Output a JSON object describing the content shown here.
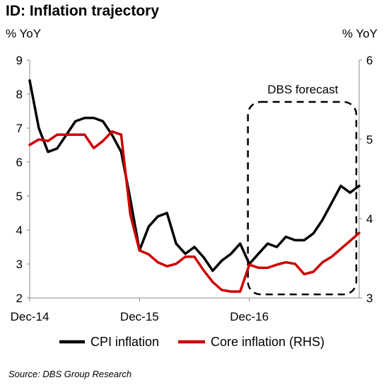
{
  "title": "ID: Inflation trajectory",
  "source": "Source: DBS Group Research",
  "chart_data": {
    "type": "line",
    "title": "ID: Inflation trajectory",
    "ylabel_left": "% YoY",
    "ylabel_right": "% YoY",
    "x_ticks": [
      "Dec-14",
      "Dec-15",
      "Dec-16"
    ],
    "x_start": "2014-12",
    "x_end": "2017-12",
    "ylim_left": [
      2,
      9
    ],
    "ylim_right": [
      3,
      6
    ],
    "y_ticks_left": [
      2,
      3,
      4,
      5,
      6,
      7,
      8,
      9
    ],
    "y_ticks_right": [
      3,
      4,
      5,
      6
    ],
    "grid": false,
    "legend_position": "bottom",
    "annotation": "DBS forecast",
    "forecast_range": [
      "2016-12",
      "2017-12"
    ],
    "series": [
      {
        "name": "CPI inflation",
        "axis": "left",
        "color": "#000000",
        "x": [
          "2014-12",
          "2015-01",
          "2015-02",
          "2015-03",
          "2015-04",
          "2015-05",
          "2015-06",
          "2015-07",
          "2015-08",
          "2015-09",
          "2015-10",
          "2015-11",
          "2015-12",
          "2016-01",
          "2016-02",
          "2016-03",
          "2016-04",
          "2016-05",
          "2016-06",
          "2016-07",
          "2016-08",
          "2016-09",
          "2016-10",
          "2016-11",
          "2016-12",
          "2017-01",
          "2017-02",
          "2017-03",
          "2017-04",
          "2017-05",
          "2017-06",
          "2017-07",
          "2017-08",
          "2017-09",
          "2017-10",
          "2017-11",
          "2017-12"
        ],
        "values": [
          8.4,
          7.0,
          6.3,
          6.4,
          6.8,
          7.2,
          7.3,
          7.3,
          7.2,
          6.8,
          6.3,
          4.9,
          3.4,
          4.1,
          4.4,
          4.5,
          3.6,
          3.3,
          3.5,
          3.2,
          2.8,
          3.1,
          3.3,
          3.6,
          3.0,
          3.3,
          3.6,
          3.5,
          3.8,
          3.7,
          3.7,
          3.9,
          4.3,
          4.8,
          5.3,
          5.1,
          5.3
        ]
      },
      {
        "name": "Core inflation (RHS)",
        "axis": "right",
        "color": "#cc0000",
        "x": [
          "2014-12",
          "2015-01",
          "2015-02",
          "2015-03",
          "2015-04",
          "2015-05",
          "2015-06",
          "2015-07",
          "2015-08",
          "2015-09",
          "2015-10",
          "2015-11",
          "2015-12",
          "2016-01",
          "2016-02",
          "2016-03",
          "2016-04",
          "2016-05",
          "2016-06",
          "2016-07",
          "2016-08",
          "2016-09",
          "2016-10",
          "2016-11",
          "2016-12",
          "2017-01",
          "2017-02",
          "2017-03",
          "2017-04",
          "2017-05",
          "2017-06",
          "2017-07",
          "2017-08",
          "2017-09",
          "2017-10",
          "2017-11",
          "2017-12"
        ],
        "values": [
          4.93,
          5.0,
          4.98,
          5.06,
          5.06,
          5.06,
          5.06,
          4.89,
          4.98,
          5.1,
          5.06,
          4.05,
          3.6,
          3.55,
          3.45,
          3.4,
          3.43,
          3.52,
          3.52,
          3.35,
          3.2,
          3.1,
          3.08,
          3.08,
          3.42,
          3.38,
          3.38,
          3.42,
          3.45,
          3.43,
          3.3,
          3.33,
          3.45,
          3.52,
          3.62,
          3.72,
          3.82
        ]
      }
    ]
  }
}
